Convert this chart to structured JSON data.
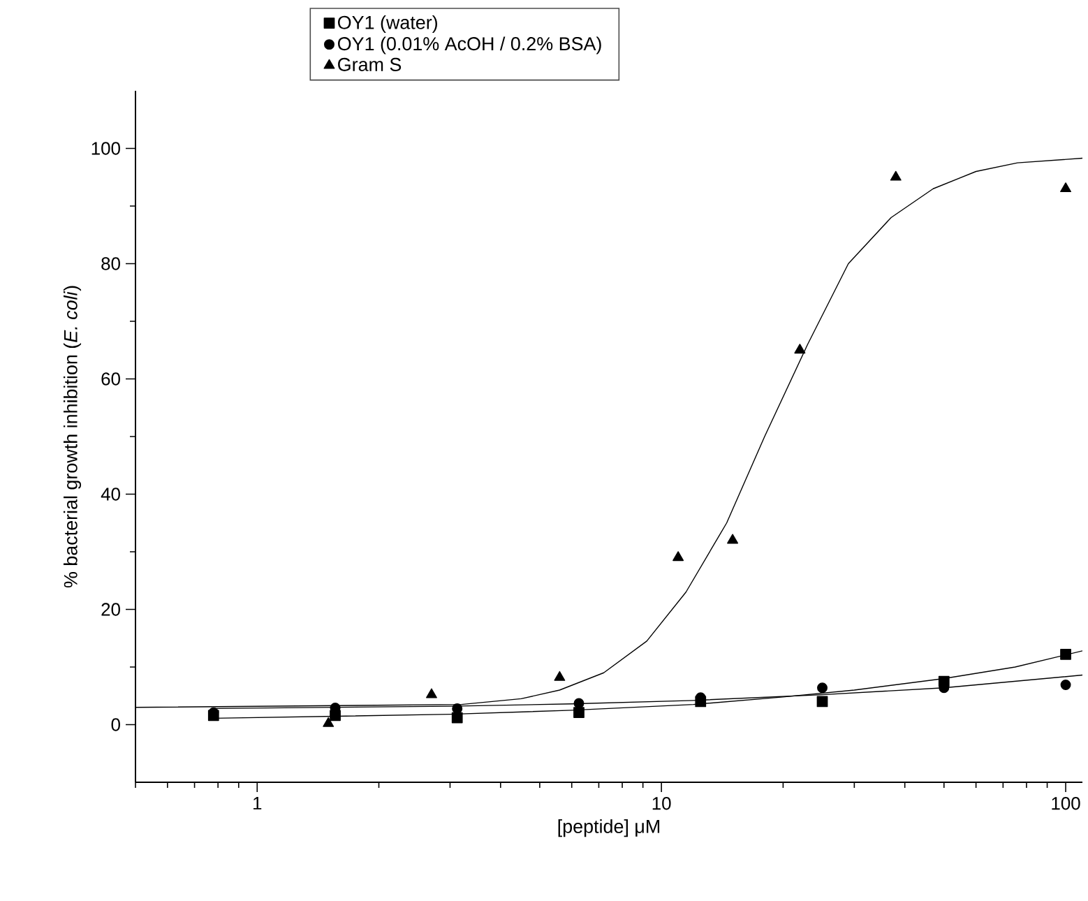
{
  "chart_data": {
    "type": "scatter",
    "xlabel": "[peptide] μM",
    "ylabel": "% bacterial growth inhibition (*E. coli*)",
    "log": "x",
    "legend": "top left",
    "grid": false,
    "xlim": [
      0.5,
      110
    ],
    "ylim": [
      -10,
      110
    ],
    "xticks": [
      {
        "value": 0.5,
        "label": null
      },
      {
        "value": 0.6,
        "label": null
      },
      {
        "value": 0.7,
        "label": null
      },
      {
        "value": 0.8,
        "label": null
      },
      {
        "value": 0.9,
        "label": null
      },
      1,
      {
        "value": 2,
        "label": null
      },
      {
        "value": 3,
        "label": null
      },
      {
        "value": 4,
        "label": null
      },
      {
        "value": 5,
        "label": null
      },
      {
        "value": 6,
        "label": null
      },
      {
        "value": 7,
        "label": null
      },
      {
        "value": 8,
        "label": null
      },
      {
        "value": 9,
        "label": null
      },
      10,
      {
        "value": 20,
        "label": null
      },
      {
        "value": 30,
        "label": null
      },
      {
        "value": 40,
        "label": null
      },
      {
        "value": 50,
        "label": null
      },
      {
        "value": 60,
        "label": null
      },
      {
        "value": 70,
        "label": null
      },
      {
        "value": 80,
        "label": null
      },
      {
        "value": 90,
        "label": null
      },
      100
    ],
    "yticks": [
      0,
      {
        "value": 10,
        "label": null
      },
      20,
      {
        "value": 30,
        "label": null
      },
      40,
      {
        "value": 50,
        "label": null
      },
      60,
      {
        "value": 70,
        "label": null
      },
      80,
      {
        "value": 90,
        "label": null
      },
      100
    ],
    "series": [
      {
        "type": "line",
        "marker": "none",
        "color": "#000000",
        "x": [
          0.5,
          3.2,
          4.5,
          5.6,
          7.2,
          9.2,
          11.5,
          14.5,
          18,
          23,
          29,
          37,
          47,
          60,
          76,
          110
        ],
        "values": [
          3,
          3.5,
          4.5,
          6,
          9,
          14.5,
          23,
          35,
          50,
          66,
          80,
          88,
          93,
          96,
          97.5,
          98.3
        ]
      },
      {
        "type": "line",
        "marker": "none",
        "color": "#000000",
        "x": [
          0.78,
          3,
          6,
          12,
          20,
          30,
          50,
          75,
          110
        ],
        "values": [
          1.1,
          1.8,
          2.5,
          3.5,
          4.8,
          6,
          8,
          10,
          12.8
        ]
      },
      {
        "type": "line",
        "marker": "none",
        "color": "#000000",
        "x": [
          0.78,
          3,
          6,
          12,
          25,
          50,
          110
        ],
        "values": [
          2.8,
          3.2,
          3.6,
          4.2,
          5.2,
          6.4,
          8.6
        ]
      },
      {
        "name": "OY1 (water)",
        "marker": "square",
        "color": "#000000",
        "x": [
          0.78,
          1.56,
          3.125,
          6.25,
          12.5,
          25,
          50,
          100
        ],
        "values": [
          1.6,
          1.6,
          1.2,
          2.1,
          4.0,
          4.0,
          7.5,
          12.2
        ]
      },
      {
        "name": "OY1 (0.01% AcOH / 0.2% BSA)",
        "marker": "circle",
        "color": "#000000",
        "x": [
          0.78,
          1.56,
          3.125,
          6.25,
          12.5,
          25,
          50,
          100
        ],
        "values": [
          2.1,
          2.9,
          2.8,
          3.7,
          4.7,
          6.4,
          6.4,
          6.9
        ]
      },
      {
        "name": "Gram S",
        "marker": "triangle",
        "color": "#000000",
        "x": [
          1.5,
          2.7,
          5.6,
          11,
          15,
          22,
          38,
          100
        ],
        "values": [
          0.2,
          5.2,
          8.2,
          29,
          32,
          65,
          95,
          93
        ]
      }
    ]
  }
}
